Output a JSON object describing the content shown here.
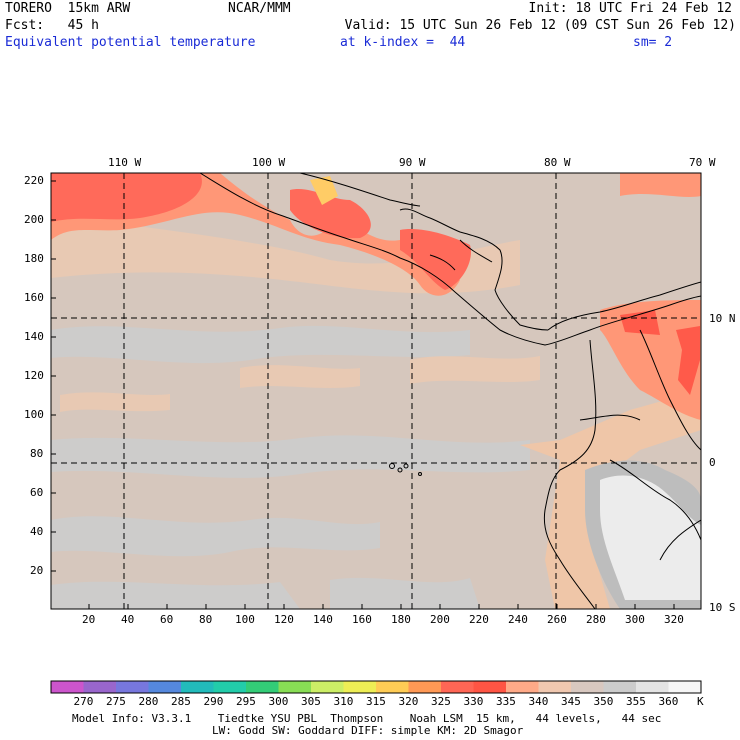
{
  "header": {
    "line1_left": "TORERO  15km ARW",
    "line1_center": "NCAR/MMM",
    "line1_right": "Init: 18 UTC Fri 24 Feb 12",
    "line2_left": "Fcst:   45 h",
    "line2_right": "Valid: 15 UTC Sun 26 Feb 12 (09 CST Sun 26 Feb 12)",
    "line3_field": "Equivalent potential temperature",
    "line3_level": "at k-index =  44",
    "line3_smooth": "sm= 2"
  },
  "map": {
    "lon_labels": [
      "110 W",
      "100 W",
      "90 W",
      "80 W",
      "70 W"
    ],
    "lat_labels": [
      "10 N",
      "0",
      "10 S"
    ],
    "y_axis_ticks": [
      "220",
      "200",
      "180",
      "160",
      "140",
      "120",
      "100",
      "80",
      "60",
      "40",
      "20"
    ],
    "x_axis_ticks": [
      "20",
      "40",
      "60",
      "80",
      "100",
      "120",
      "140",
      "160",
      "180",
      "200",
      "220",
      "240",
      "260",
      "280",
      "300",
      "320"
    ]
  },
  "colorbar": {
    "levels": [
      "270",
      "275",
      "280",
      "285",
      "290",
      "295",
      "300",
      "305",
      "310",
      "315",
      "320",
      "325",
      "330",
      "335",
      "340",
      "345",
      "350",
      "355",
      "360"
    ],
    "unit": "K",
    "colors": [
      "#cc55cc",
      "#9966cc",
      "#7777dd",
      "#5588dd",
      "#22bbbb",
      "#22ccaa",
      "#33cc77",
      "#88dd55",
      "#ccee66",
      "#eeee55",
      "#ffcc55",
      "#ff9955",
      "#ff6655",
      "#ff5544",
      "#ffaa88",
      "#f0c8b0",
      "#d8c8c0",
      "#cccccc",
      "#e4e4e4",
      "#f6f6f6"
    ]
  },
  "footer": {
    "line1": "Model Info: V3.3.1    Tiedtke YSU PBL  Thompson    Noah LSM  15 km,   44 levels,   44 sec",
    "line2": "LW: Godd SW: Goddard DIFF: simple KM: 2D Smagor"
  }
}
